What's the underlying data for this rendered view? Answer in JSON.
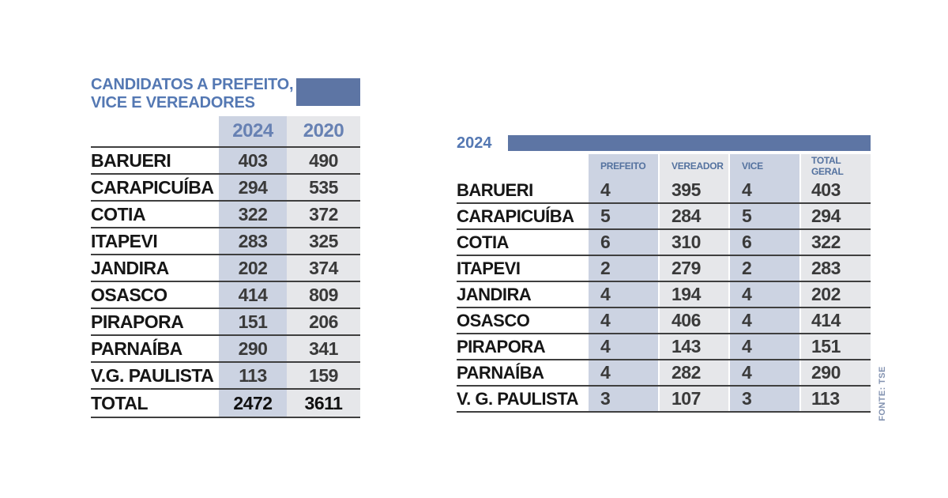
{
  "colors": {
    "accent_bar": "#5d75a4",
    "title_text": "#5478b3",
    "year_header_text": "#6781b3",
    "column_header_text": "#54729f",
    "band_blue": "#ccd3e2",
    "band_gray": "#e6e7ea",
    "row_line": "#3f3f3f",
    "label_text": "#161616",
    "number_text": "#3a3a3a",
    "source_text": "#8292b0"
  },
  "left_table": {
    "title_line1": "CANDIDATOS A PREFEITO,",
    "title_line2": "VICE E VEREADORES",
    "col_2024": "2024",
    "col_2020": "2020",
    "rows": [
      {
        "label": "BARUERI",
        "y2024": "403",
        "y2020": "490"
      },
      {
        "label": "CARAPICUÍBA",
        "y2024": "294",
        "y2020": "535"
      },
      {
        "label": "COTIA",
        "y2024": "322",
        "y2020": "372"
      },
      {
        "label": "ITAPEVI",
        "y2024": "283",
        "y2020": "325"
      },
      {
        "label": "JANDIRA",
        "y2024": "202",
        "y2020": "374"
      },
      {
        "label": "OSASCO",
        "y2024": "414",
        "y2020": "809"
      },
      {
        "label": "PIRAPORA",
        "y2024": "151",
        "y2020": "206"
      },
      {
        "label": "PARNAÍBA",
        "y2024": "290",
        "y2020": "341"
      },
      {
        "label": "V.G. PAULISTA",
        "y2024": "113",
        "y2020": "159"
      }
    ],
    "total": {
      "label": "TOTAL",
      "y2024": "2472",
      "y2020": "3611"
    }
  },
  "right_table": {
    "year_label": "2024",
    "col_prefeito": "PREFEITO",
    "col_vereador": "VEREADOR",
    "col_vice": "VICE",
    "col_total": "TOTAL GERAL",
    "rows": [
      {
        "label": "BARUERI",
        "prefeito": "4",
        "vereador": "395",
        "vice": "4",
        "total": "403"
      },
      {
        "label": "CARAPICUÍBA",
        "prefeito": "5",
        "vereador": "284",
        "vice": "5",
        "total": "294"
      },
      {
        "label": "COTIA",
        "prefeito": "6",
        "vereador": "310",
        "vice": "6",
        "total": "322"
      },
      {
        "label": "ITAPEVI",
        "prefeito": "2",
        "vereador": "279",
        "vice": "2",
        "total": "283"
      },
      {
        "label": "JANDIRA",
        "prefeito": "4",
        "vereador": "194",
        "vice": "4",
        "total": "202"
      },
      {
        "label": "OSASCO",
        "prefeito": "4",
        "vereador": "406",
        "vice": "4",
        "total": "414"
      },
      {
        "label": "PIRAPORA",
        "prefeito": "4",
        "vereador": "143",
        "vice": "4",
        "total": "151"
      },
      {
        "label": "PARNAÍBA",
        "prefeito": "4",
        "vereador": "282",
        "vice": "4",
        "total": "290"
      },
      {
        "label": "V. G. PAULISTA",
        "prefeito": "3",
        "vereador": "107",
        "vice": "3",
        "total": "113"
      }
    ]
  },
  "source": "FONTE: TSE",
  "chart_data": [
    {
      "type": "table",
      "title": "CANDIDATOS A PREFEITO, VICE E VEREADORES",
      "columns": [
        "",
        "2024",
        "2020"
      ],
      "rows": [
        [
          "BARUERI",
          403,
          490
        ],
        [
          "CARAPICUÍBA",
          294,
          535
        ],
        [
          "COTIA",
          322,
          372
        ],
        [
          "ITAPEVI",
          283,
          325
        ],
        [
          "JANDIRA",
          202,
          374
        ],
        [
          "OSASCO",
          414,
          809
        ],
        [
          "PIRAPORA",
          151,
          206
        ],
        [
          "PARNAÍBA",
          290,
          341
        ],
        [
          "V.G. PAULISTA",
          113,
          159
        ],
        [
          "TOTAL",
          2472,
          3611
        ]
      ]
    },
    {
      "type": "table",
      "title": "2024",
      "columns": [
        "",
        "PREFEITO",
        "VEREADOR",
        "VICE",
        "TOTAL GERAL"
      ],
      "rows": [
        [
          "BARUERI",
          4,
          395,
          4,
          403
        ],
        [
          "CARAPICUÍBA",
          5,
          284,
          5,
          294
        ],
        [
          "COTIA",
          6,
          310,
          6,
          322
        ],
        [
          "ITAPEVI",
          2,
          279,
          2,
          283
        ],
        [
          "JANDIRA",
          4,
          194,
          4,
          202
        ],
        [
          "OSASCO",
          4,
          406,
          4,
          414
        ],
        [
          "PIRAPORA",
          4,
          143,
          4,
          151
        ],
        [
          "PARNAÍBA",
          4,
          282,
          4,
          290
        ],
        [
          "V. G. PAULISTA",
          3,
          107,
          3,
          113
        ]
      ]
    }
  ]
}
